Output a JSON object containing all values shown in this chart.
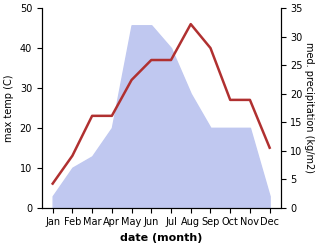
{
  "months": [
    "Jan",
    "Feb",
    "Mar",
    "Apr",
    "May",
    "Jun",
    "Jul",
    "Aug",
    "Sep",
    "Oct",
    "Nov",
    "Dec"
  ],
  "temperature": [
    6,
    13,
    23,
    23,
    32,
    37,
    37,
    46,
    40,
    27,
    27,
    15
  ],
  "precipitation": [
    2,
    7,
    9,
    14,
    32,
    32,
    28,
    20,
    14,
    14,
    14,
    2
  ],
  "temp_color": "#b03030",
  "precip_fill_color": "#c0c8f0",
  "left_ylim": [
    0,
    50
  ],
  "right_ylim": [
    0,
    35
  ],
  "left_yticks": [
    0,
    10,
    20,
    30,
    40,
    50
  ],
  "right_yticks": [
    0,
    5,
    10,
    15,
    20,
    25,
    30,
    35
  ],
  "xlabel": "date (month)",
  "ylabel_left": "max temp (C)",
  "ylabel_right": "med. precipitation (kg/m2)",
  "figsize": [
    3.18,
    2.47
  ],
  "dpi": 100
}
